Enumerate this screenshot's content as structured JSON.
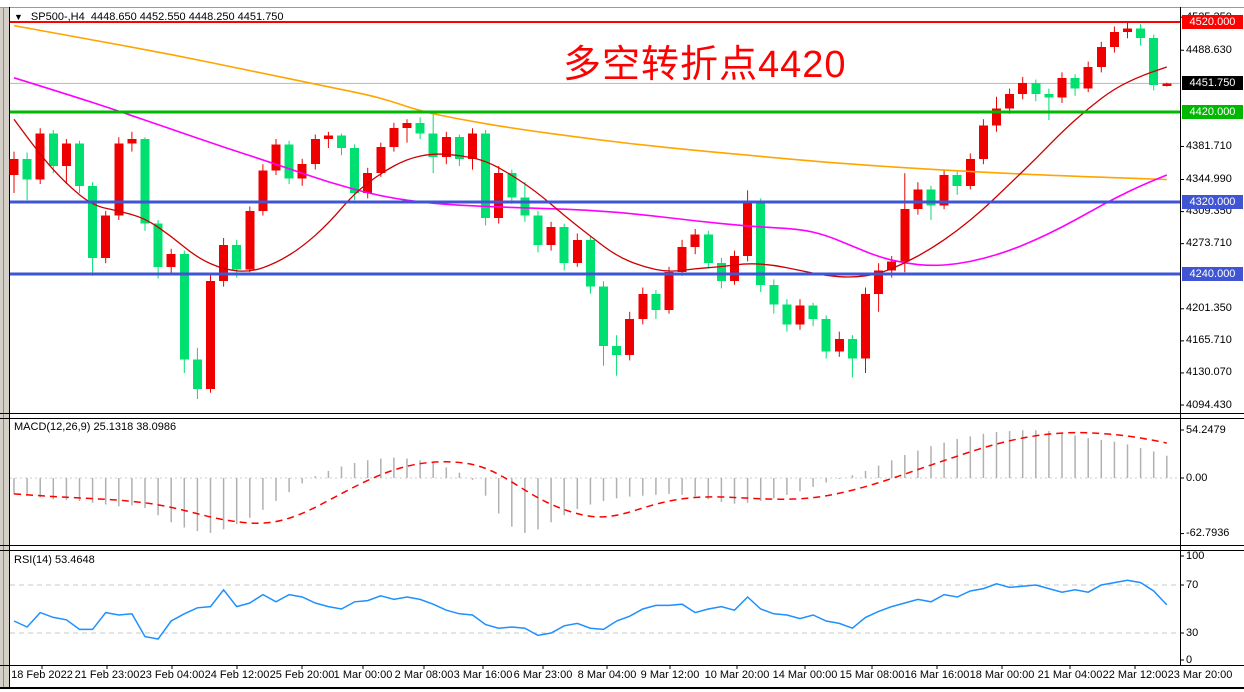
{
  "window": {
    "dropdown_icon": "▼",
    "symbol": "SP500-,H4",
    "ohlc_text": "4448.650 4452.550 4448.250 4451.750"
  },
  "annotation": {
    "text": "多空转折点4420",
    "color": "#fe0000"
  },
  "colors": {
    "bull": "#ef0000",
    "bear": "#00e070",
    "ma_fast_red": "#cc0000",
    "ma_mid_magenta": "#ff00ff",
    "ma_slow_orange": "#ffa500",
    "level_red": "#ff0000",
    "level_green": "#00b800",
    "level_blue": "#3f55d4",
    "current_price_line": "#b8b8b8",
    "macd_hist": "#b0b0b0",
    "macd_signal": "#ff0000",
    "rsi_line": "#1e90ff",
    "dashed_level": "#c8c8c8"
  },
  "main_chart": {
    "y_ticks": [
      4525.35,
      4488.63,
      4381.71,
      4344.99,
      4309.35,
      4273.71,
      4201.35,
      4165.71,
      4130.07,
      4094.43
    ],
    "price_badges": [
      {
        "value": "4520.000",
        "price": 4520.0,
        "bg": "#ff0000"
      },
      {
        "value": "4451.750",
        "price": 4451.75,
        "bg": "#000000"
      },
      {
        "value": "4420.000",
        "price": 4420.0,
        "bg": "#00b800"
      },
      {
        "value": "4320.000",
        "price": 4320.0,
        "bg": "#3f55d4"
      },
      {
        "value": "4240.000",
        "price": 4240.0,
        "bg": "#3f55d4"
      }
    ],
    "h_lines": [
      {
        "price": 4451.75,
        "color": "#b8b8b8",
        "width": 1,
        "layer": "back"
      },
      {
        "price": 4520.0,
        "color": "#ff0000",
        "width": 2,
        "layer": "front"
      },
      {
        "price": 4420.0,
        "color": "#00b800",
        "width": 3,
        "layer": "front"
      },
      {
        "price": 4320.0,
        "color": "#3f55d4",
        "width": 3,
        "layer": "front"
      },
      {
        "price": 4240.0,
        "color": "#3f55d4",
        "width": 3,
        "layer": "front"
      }
    ]
  },
  "macd_panel": {
    "label": "MACD(12,26,9)",
    "values": "25.1318 38.0986",
    "y_ticks": [
      {
        "text": "54.2479",
        "value": 54.2479
      },
      {
        "text": "0.00",
        "value": 0
      },
      {
        "text": "-62.7936",
        "value": -62.7936
      }
    ]
  },
  "rsi_panel": {
    "label": "RSI(14)",
    "value": "53.4648",
    "y_ticks": [
      {
        "text": "100",
        "value": 100
      },
      {
        "text": "70",
        "value": 70
      },
      {
        "text": "30",
        "value": 30
      },
      {
        "text": "0",
        "value": 0
      }
    ],
    "dashed_levels": [
      70,
      30
    ]
  },
  "x_axis": {
    "labels": [
      "18 Feb 2022",
      "21 Feb 23:00",
      "23 Feb 04:00",
      "24 Feb 12:00",
      "25 Feb 20:00",
      "1 Mar 00:00",
      "2 Mar 08:00",
      "3 Mar 16:00",
      "6 Mar 23:00",
      "8 Mar 04:00",
      "9 Mar 12:00",
      "10 Mar 20:00",
      "14 Mar 00:00",
      "15 Mar 08:00",
      "16 Mar 16:00",
      "18 Mar 00:00",
      "21 Mar 04:00",
      "22 Mar 12:00",
      "23 Mar 20:00"
    ],
    "positions": [
      42,
      107,
      172,
      237,
      302,
      363,
      424,
      483,
      543,
      607,
      670,
      737,
      805,
      872,
      937,
      1002,
      1070,
      1135,
      1200
    ]
  },
  "chart_data": [
    {
      "type": "candlestick",
      "title": "SP500-,H4",
      "ylim": [
        4085,
        4533
      ],
      "x_axis_labels": [
        "18 Feb 2022",
        "21 Feb 23:00",
        "23 Feb 04:00",
        "24 Feb 12:00",
        "25 Feb 20:00",
        "1 Mar 00:00",
        "2 Mar 08:00",
        "3 Mar 16:00",
        "6 Mar 23:00",
        "8 Mar 04:00",
        "9 Mar 12:00",
        "10 Mar 20:00",
        "14 Mar 00:00",
        "15 Mar 08:00",
        "16 Mar 16:00",
        "18 Mar 00:00",
        "21 Mar 04:00",
        "22 Mar 12:00",
        "23 Mar 20:00"
      ],
      "up_color_convention": "red-up-green-down",
      "ohlc": [
        [
          4350,
          4376,
          4330,
          4368
        ],
        [
          4368,
          4375,
          4322,
          4345
        ],
        [
          4345,
          4402,
          4340,
          4396
        ],
        [
          4396,
          4400,
          4352,
          4360
        ],
        [
          4360,
          4390,
          4340,
          4385
        ],
        [
          4385,
          4388,
          4330,
          4338
        ],
        [
          4338,
          4342,
          4238,
          4258
        ],
        [
          4258,
          4310,
          4252,
          4305
        ],
        [
          4305,
          4392,
          4300,
          4385
        ],
        [
          4385,
          4398,
          4376,
          4390
        ],
        [
          4390,
          4392,
          4288,
          4296
        ],
        [
          4296,
          4300,
          4235,
          4248
        ],
        [
          4248,
          4268,
          4240,
          4262
        ],
        [
          4262,
          4266,
          4130,
          4145
        ],
        [
          4145,
          4158,
          4101,
          4112
        ],
        [
          4112,
          4240,
          4108,
          4232
        ],
        [
          4232,
          4280,
          4226,
          4272
        ],
        [
          4272,
          4278,
          4236,
          4245
        ],
        [
          4245,
          4315,
          4242,
          4310
        ],
        [
          4310,
          4362,
          4305,
          4355
        ],
        [
          4355,
          4390,
          4350,
          4384
        ],
        [
          4384,
          4388,
          4340,
          4346
        ],
        [
          4346,
          4368,
          4338,
          4362
        ],
        [
          4362,
          4395,
          4356,
          4390
        ],
        [
          4390,
          4398,
          4380,
          4394
        ],
        [
          4394,
          4396,
          4372,
          4380
        ],
        [
          4380,
          4384,
          4322,
          4330
        ],
        [
          4330,
          4358,
          4324,
          4352
        ],
        [
          4352,
          4386,
          4348,
          4381
        ],
        [
          4381,
          4408,
          4376,
          4402
        ],
        [
          4402,
          4412,
          4386,
          4408
        ],
        [
          4408,
          4414,
          4390,
          4396
        ],
        [
          4396,
          4419,
          4352,
          4370
        ],
        [
          4370,
          4398,
          4362,
          4392
        ],
        [
          4392,
          4395,
          4360,
          4368
        ],
        [
          4368,
          4402,
          4356,
          4396
        ],
        [
          4396,
          4400,
          4294,
          4302
        ],
        [
          4302,
          4360,
          4296,
          4352
        ],
        [
          4352,
          4356,
          4318,
          4325
        ],
        [
          4325,
          4342,
          4298,
          4305
        ],
        [
          4305,
          4310,
          4264,
          4272
        ],
        [
          4272,
          4298,
          4266,
          4292
        ],
        [
          4292,
          4296,
          4244,
          4252
        ],
        [
          4252,
          4285,
          4248,
          4278
        ],
        [
          4278,
          4282,
          4218,
          4226
        ],
        [
          4226,
          4232,
          4138,
          4160
        ],
        [
          4160,
          4172,
          4127,
          4150
        ],
        [
          4150,
          4198,
          4144,
          4190
        ],
        [
          4190,
          4225,
          4184,
          4218
        ],
        [
          4218,
          4222,
          4190,
          4200
        ],
        [
          4200,
          4248,
          4196,
          4242
        ],
        [
          4242,
          4278,
          4238,
          4270
        ],
        [
          4270,
          4290,
          4262,
          4284
        ],
        [
          4284,
          4288,
          4246,
          4252
        ],
        [
          4252,
          4258,
          4224,
          4232
        ],
        [
          4232,
          4266,
          4228,
          4260
        ],
        [
          4260,
          4333,
          4254,
          4320
        ],
        [
          4320,
          4324,
          4220,
          4228
        ],
        [
          4228,
          4234,
          4196,
          4206
        ],
        [
          4206,
          4212,
          4176,
          4184
        ],
        [
          4184,
          4212,
          4178,
          4205
        ],
        [
          4205,
          4208,
          4182,
          4190
        ],
        [
          4190,
          4194,
          4146,
          4154
        ],
        [
          4154,
          4176,
          4148,
          4168
        ],
        [
          4168,
          4172,
          4125,
          4146
        ],
        [
          4146,
          4225,
          4130,
          4218
        ],
        [
          4218,
          4252,
          4198,
          4244
        ],
        [
          4244,
          4260,
          4236,
          4254
        ],
        [
          4254,
          4352,
          4242,
          4312
        ],
        [
          4312,
          4342,
          4306,
          4334
        ],
        [
          4334,
          4338,
          4300,
          4316
        ],
        [
          4316,
          4355,
          4312,
          4350
        ],
        [
          4350,
          4354,
          4328,
          4338
        ],
        [
          4338,
          4374,
          4334,
          4368
        ],
        [
          4368,
          4412,
          4362,
          4405
        ],
        [
          4405,
          4437,
          4398,
          4424
        ],
        [
          4424,
          4446,
          4418,
          4440
        ],
        [
          4440,
          4459,
          4434,
          4452
        ],
        [
          4452,
          4456,
          4432,
          4440
        ],
        [
          4440,
          4446,
          4411,
          4436
        ],
        [
          4436,
          4464,
          4430,
          4458
        ],
        [
          4458,
          4462,
          4438,
          4446
        ],
        [
          4446,
          4476,
          4442,
          4470
        ],
        [
          4470,
          4498,
          4464,
          4492
        ],
        [
          4492,
          4515,
          4486,
          4509
        ],
        [
          4509,
          4520,
          4502,
          4513
        ],
        [
          4513,
          4518,
          4494,
          4502
        ],
        [
          4502,
          4506,
          4444,
          4450
        ],
        [
          4448.65,
          4452.55,
          4448.25,
          4451.75
        ]
      ],
      "ma_fast_red": [
        [
          0,
          4412
        ],
        [
          2,
          4372
        ],
        [
          4,
          4340
        ],
        [
          6,
          4316
        ],
        [
          8,
          4310
        ],
        [
          10,
          4302
        ],
        [
          12,
          4282
        ],
        [
          14,
          4258
        ],
        [
          16,
          4245
        ],
        [
          18,
          4242
        ],
        [
          20,
          4252
        ],
        [
          22,
          4270
        ],
        [
          24,
          4296
        ],
        [
          26,
          4330
        ],
        [
          28,
          4352
        ],
        [
          30,
          4368
        ],
        [
          32,
          4374
        ],
        [
          34,
          4372
        ],
        [
          36,
          4366
        ],
        [
          38,
          4350
        ],
        [
          40,
          4330
        ],
        [
          42,
          4305
        ],
        [
          44,
          4282
        ],
        [
          46,
          4260
        ],
        [
          48,
          4248
        ],
        [
          50,
          4242
        ],
        [
          52,
          4246
        ],
        [
          54,
          4248
        ],
        [
          56,
          4252
        ],
        [
          58,
          4250
        ],
        [
          60,
          4244
        ],
        [
          62,
          4238
        ],
        [
          64,
          4236
        ],
        [
          66,
          4240
        ],
        [
          68,
          4252
        ],
        [
          70,
          4268
        ],
        [
          72,
          4288
        ],
        [
          74,
          4312
        ],
        [
          76,
          4340
        ],
        [
          78,
          4368
        ],
        [
          80,
          4398
        ],
        [
          82,
          4424
        ],
        [
          84,
          4446
        ],
        [
          86,
          4460
        ],
        [
          88,
          4470
        ]
      ],
      "ma_mid_magenta": [
        [
          0,
          4458
        ],
        [
          4,
          4440
        ],
        [
          8,
          4421
        ],
        [
          12,
          4401
        ],
        [
          16,
          4381
        ],
        [
          20,
          4362
        ],
        [
          24,
          4342
        ],
        [
          28,
          4326
        ],
        [
          32,
          4318
        ],
        [
          36,
          4315
        ],
        [
          40,
          4313
        ],
        [
          44,
          4311
        ],
        [
          48,
          4306
        ],
        [
          52,
          4299
        ],
        [
          56,
          4293
        ],
        [
          60,
          4290
        ],
        [
          62,
          4283
        ],
        [
          64,
          4271
        ],
        [
          66,
          4259
        ],
        [
          68,
          4252
        ],
        [
          70,
          4249
        ],
        [
          72,
          4251
        ],
        [
          74,
          4257
        ],
        [
          76,
          4266
        ],
        [
          78,
          4278
        ],
        [
          80,
          4292
        ],
        [
          82,
          4308
        ],
        [
          84,
          4324
        ],
        [
          86,
          4338
        ],
        [
          88,
          4350
        ]
      ],
      "ma_slow_orange": [
        [
          0,
          4516
        ],
        [
          6,
          4500
        ],
        [
          12,
          4484
        ],
        [
          18,
          4466
        ],
        [
          24,
          4448
        ],
        [
          28,
          4436
        ],
        [
          31,
          4421
        ],
        [
          34,
          4412
        ],
        [
          38,
          4402
        ],
        [
          44,
          4390
        ],
        [
          50,
          4380
        ],
        [
          56,
          4372
        ],
        [
          62,
          4364
        ],
        [
          68,
          4358
        ],
        [
          74,
          4353
        ],
        [
          80,
          4349
        ],
        [
          88,
          4345
        ]
      ],
      "horizontal_levels": [
        4520,
        4420,
        4320,
        4240
      ],
      "current_price": 4451.75
    },
    {
      "type": "bar",
      "name": "MACD(12,26,9) histogram with signal line",
      "ylim": [
        -62.7936,
        54.2479
      ],
      "signal_period": 9,
      "values": [
        -18,
        -20,
        -22,
        -24,
        -25,
        -26,
        -28,
        -30,
        -32,
        -31,
        -34,
        -42,
        -50,
        -56,
        -60,
        -62,
        -58,
        -52,
        -45,
        -36,
        -26,
        -16,
        -6,
        2,
        8,
        13,
        17,
        20,
        22,
        23,
        22,
        20,
        17,
        12,
        6,
        -2,
        -20,
        -40,
        -55,
        -62,
        -58,
        -50,
        -42,
        -35,
        -30,
        -26,
        -23,
        -21,
        -20,
        -19,
        -18,
        -19,
        -21,
        -24,
        -27,
        -29,
        -28,
        -26,
        -23,
        -19,
        -15,
        -10,
        -5,
        -1,
        3,
        8,
        14,
        20,
        26,
        31,
        36,
        40,
        44,
        47,
        50,
        52,
        53,
        54,
        54,
        53,
        51,
        48,
        45,
        43,
        41,
        38,
        34,
        30,
        25.13
      ],
      "last_macd": 25.1318,
      "last_signal": 38.0986
    },
    {
      "type": "line",
      "name": "RSI(14)",
      "ylim": [
        0,
        100
      ],
      "levels": [
        70,
        30
      ],
      "values": [
        40,
        35,
        47,
        43,
        41,
        33,
        33,
        47,
        45,
        46,
        27,
        25,
        40,
        46,
        51,
        52,
        66,
        52,
        55,
        62,
        56,
        62,
        60,
        55,
        52,
        50,
        56,
        57,
        61,
        58,
        60,
        58,
        54,
        49,
        46,
        45,
        37,
        34,
        35,
        34,
        28,
        30,
        36,
        38,
        34,
        33,
        40,
        44,
        50,
        53,
        53,
        54,
        47,
        50,
        52,
        49,
        60,
        50,
        46,
        45,
        42,
        45,
        40,
        38,
        34,
        43,
        48,
        52,
        55,
        58,
        56,
        62,
        60,
        65,
        67,
        71,
        68,
        69,
        70,
        67,
        64,
        66,
        64,
        70,
        72,
        74,
        72,
        65,
        53.4648
      ],
      "last_value": 53.4648
    }
  ]
}
